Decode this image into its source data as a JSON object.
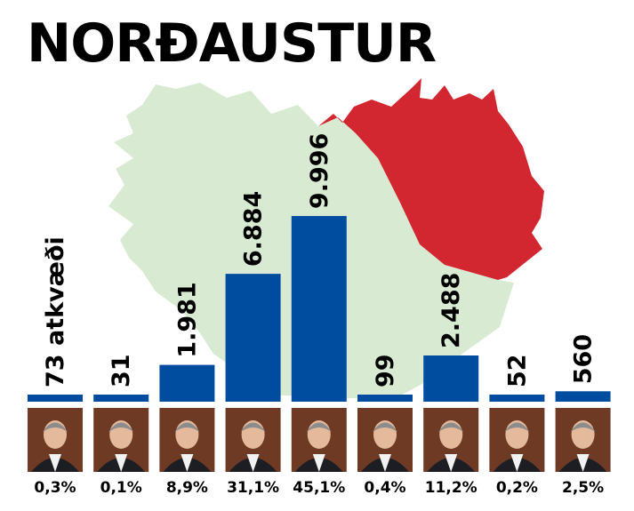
{
  "title": "NORÐAUSTUR",
  "colors": {
    "bar": "#004da0",
    "map_land": "#d8ebd2",
    "map_region": "#d22630",
    "photo_background": "#6e3a24"
  },
  "chart_data": {
    "type": "bar",
    "title": "NORÐAUSTUR",
    "categories": [
      "",
      "",
      "",
      "",
      "",
      "",
      "",
      "",
      ""
    ],
    "values": [
      73,
      31,
      1981,
      6884,
      9996,
      99,
      2488,
      52,
      560
    ],
    "value_labels": [
      "73 atkvæði",
      "31",
      "1.981",
      "6.884",
      "9.996",
      "99",
      "2.488",
      "52",
      "560"
    ],
    "percent_labels": [
      "0,3%",
      "0,1%",
      "8,9%",
      "31,1%",
      "45,1%",
      "0,4%",
      "11,2%",
      "0,2%",
      "2,5%"
    ],
    "ylim": [
      0,
      10000
    ],
    "grid": false,
    "legend": "none"
  }
}
